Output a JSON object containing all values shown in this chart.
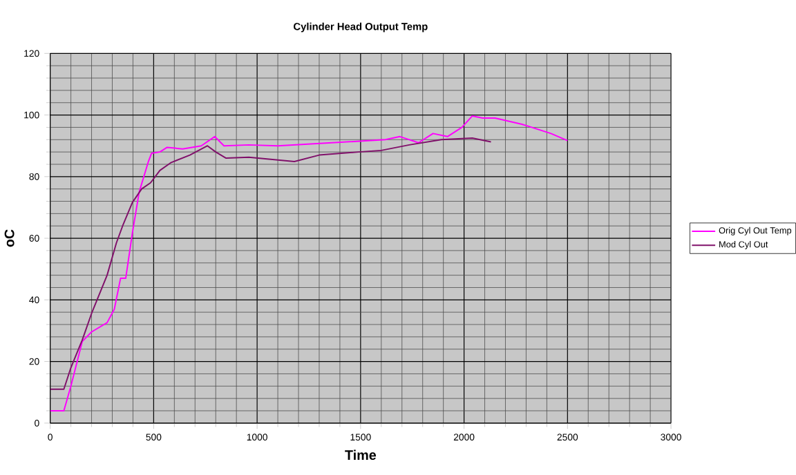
{
  "chart_data": {
    "type": "line",
    "title": "Cylinder Head Output Temp",
    "xlabel": "Time",
    "ylabel": "oC",
    "xlim": [
      0,
      3000
    ],
    "xticks": [
      0,
      500,
      1000,
      1500,
      2000,
      2500,
      3000
    ],
    "ylim": [
      0,
      120
    ],
    "yticks": [
      0,
      20,
      40,
      60,
      80,
      100,
      120
    ],
    "grid": true,
    "legend": "right",
    "marker": "none",
    "line_style": "solid",
    "series": [
      {
        "name": "Orig Cyl Out Temp",
        "color": "#ff00ff",
        "x": [
          0,
          66,
          100,
          155,
          200,
          275,
          310,
          340,
          365,
          397,
          430,
          475,
          490,
          530,
          565,
          640,
          730,
          795,
          840,
          960,
          1100,
          1360,
          1620,
          1690,
          1780,
          1850,
          1920,
          1990,
          2040,
          2090,
          2150,
          2280,
          2420,
          2500
        ],
        "values": [
          4,
          4,
          12,
          26.5,
          29.6,
          32.6,
          37,
          47,
          47,
          61.6,
          75,
          85,
          87.6,
          88,
          89.5,
          89,
          90,
          93,
          90,
          90.3,
          90,
          91,
          92,
          93,
          91,
          94,
          93,
          96,
          99.7,
          99,
          99,
          97,
          94,
          91.7
        ]
      },
      {
        "name": "Mod Cyl Out",
        "color": "#80106a",
        "x": [
          0,
          66,
          100,
          155,
          200,
          275,
          320,
          350,
          397,
          442,
          485,
          530,
          585,
          675,
          760,
          800,
          850,
          960,
          1180,
          1300,
          1490,
          1600,
          1735,
          1890,
          2040,
          2130
        ],
        "values": [
          11,
          11,
          18,
          27,
          35.6,
          48,
          58.5,
          64,
          71.6,
          76,
          78,
          82,
          84.6,
          87,
          90,
          88,
          86,
          86.3,
          84.9,
          87,
          88,
          88.5,
          90.3,
          92,
          92.5,
          91.3
        ]
      }
    ]
  }
}
